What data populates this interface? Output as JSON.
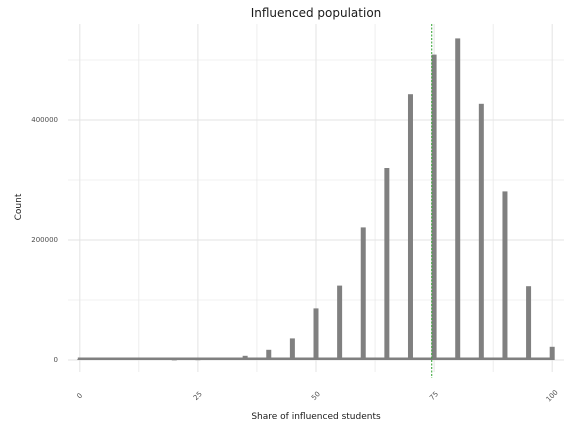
{
  "chart_data": {
    "type": "bar",
    "title": "Influenced population",
    "xlabel": "Share of influenced students",
    "ylabel": "Count",
    "xlim": [
      -2.5,
      102.5
    ],
    "ylim": [
      -20000,
      560000
    ],
    "x_ticks": [
      0,
      25,
      50,
      75,
      100
    ],
    "x_tick_labels": [
      "0",
      "25",
      "50",
      "75",
      "100"
    ],
    "y_ticks": [
      0,
      200000,
      400000
    ],
    "y_tick_labels": [
      "0",
      "200000",
      "400000"
    ],
    "grid": true,
    "bar_color": "#808080",
    "reference_line": {
      "x": 74.5,
      "color": "#2ca02c",
      "style": "dashed"
    },
    "x": [
      0,
      20,
      25,
      30,
      35,
      40,
      45,
      50,
      55,
      60,
      65,
      70,
      75,
      80,
      85,
      90,
      95,
      100
    ],
    "values": [
      1500,
      200,
      500,
      2000,
      7000,
      17000,
      36000,
      86000,
      124000,
      221000,
      320000,
      443000,
      509000,
      536000,
      427000,
      281000,
      123000,
      22000
    ]
  }
}
